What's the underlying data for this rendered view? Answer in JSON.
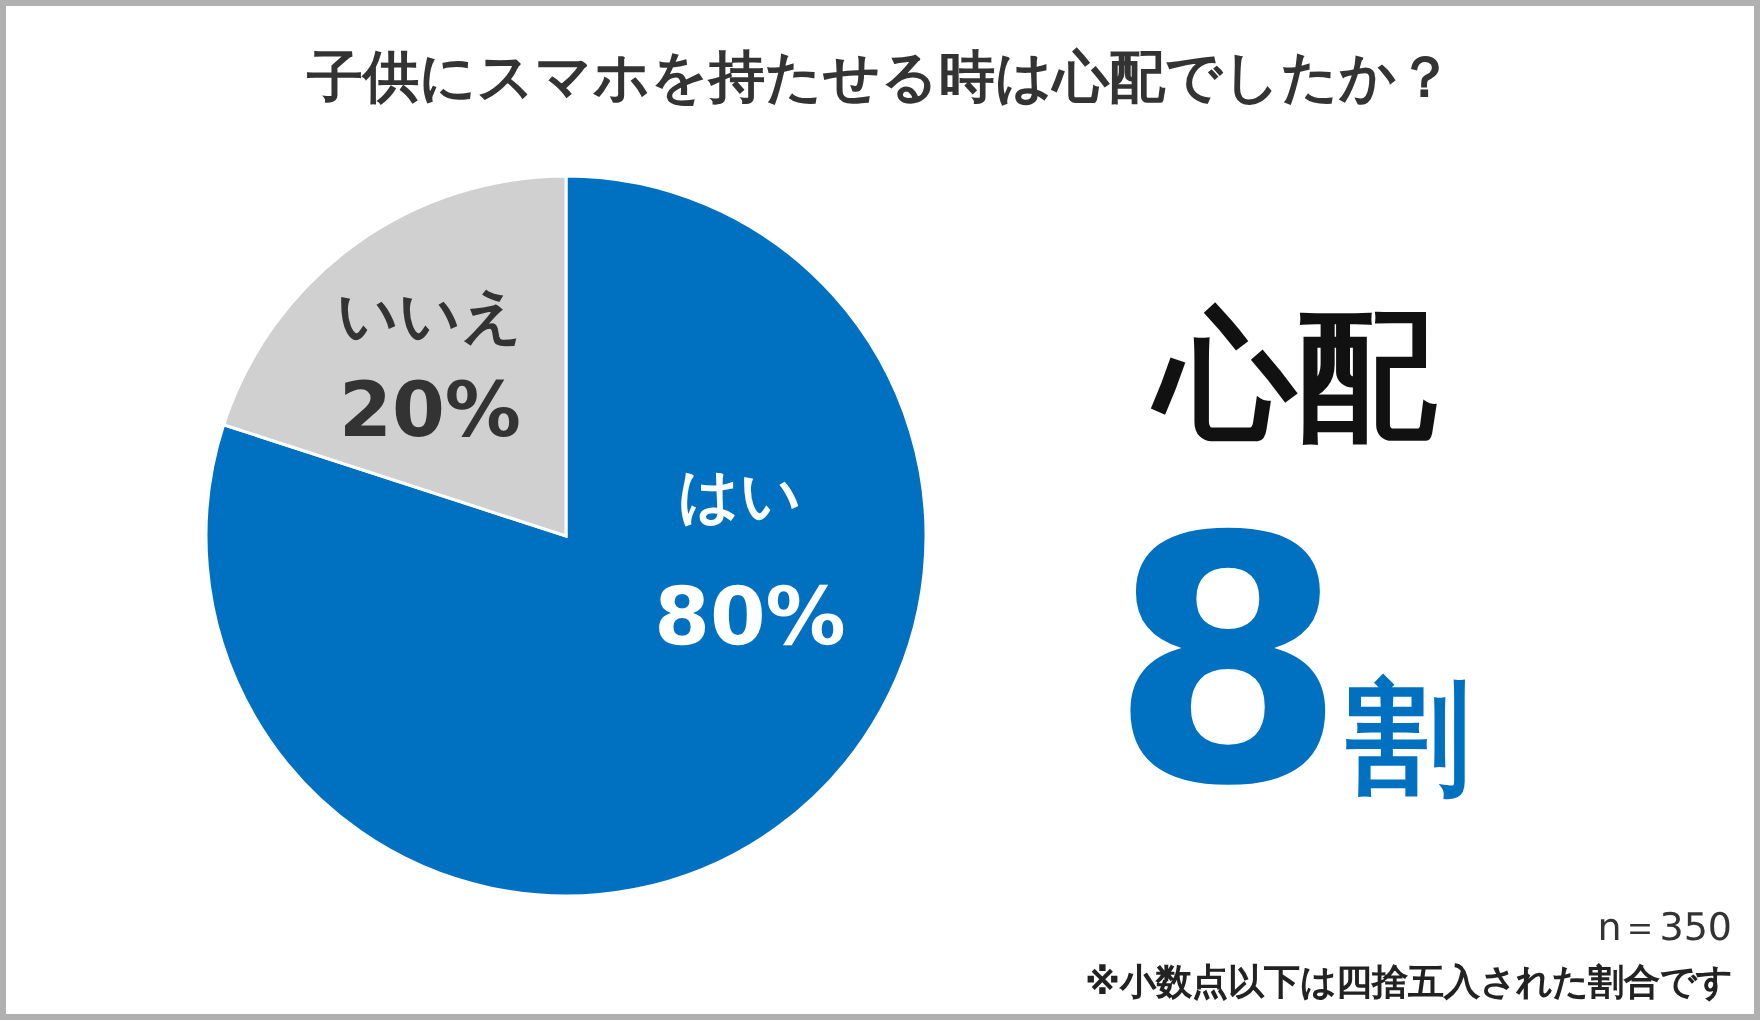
{
  "chart_data": {
    "type": "pie",
    "title": "子供にスマホを持たせる時は心配でしたか？",
    "categories": [
      "はい",
      "いいえ"
    ],
    "values": [
      80,
      20
    ],
    "colors": [
      "#0070c0",
      "#d0d0d0"
    ],
    "value_labels": [
      "80%",
      "20%"
    ],
    "annotations": [
      "心配",
      "8割",
      "n＝350",
      "※小数点以下は四捨五入された割合です"
    ]
  }
}
